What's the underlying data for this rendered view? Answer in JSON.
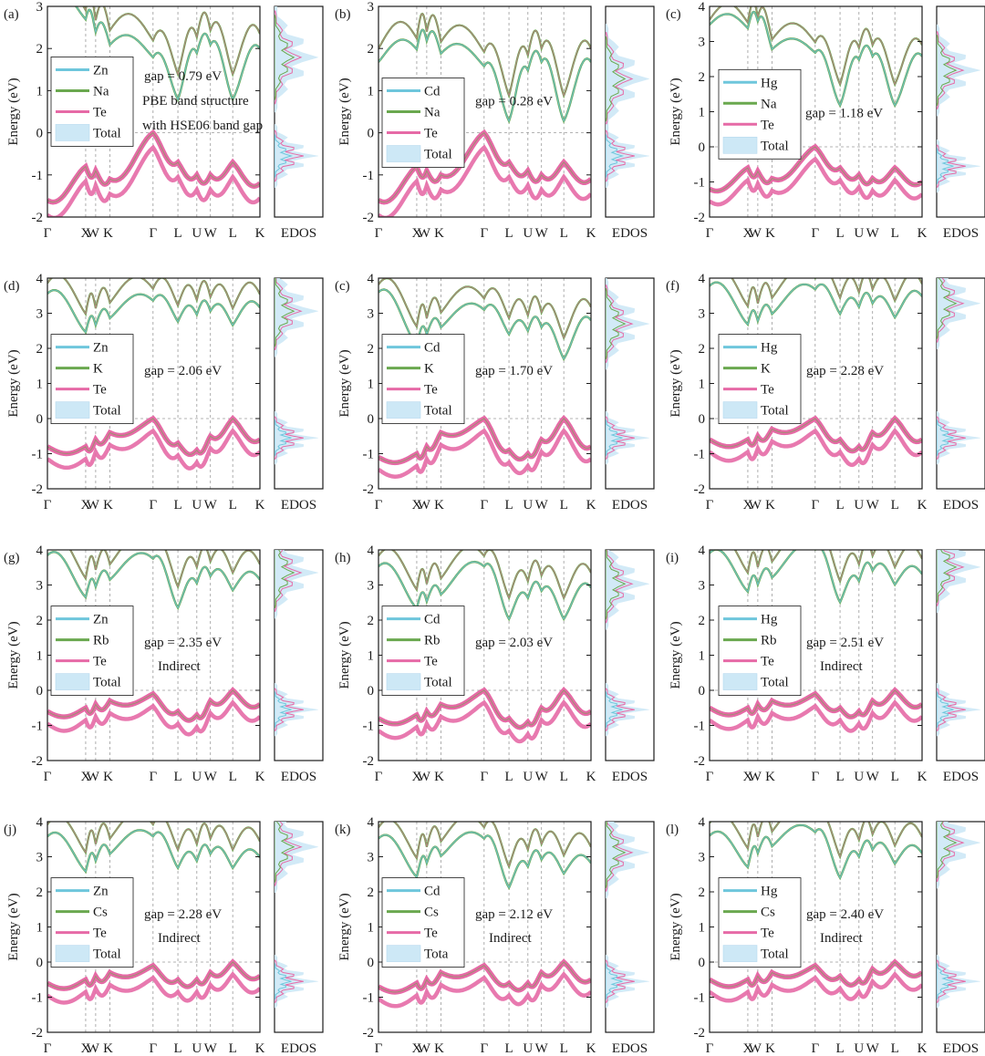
{
  "figure": {
    "ylabel": "Energy (eV)",
    "edos_label": "EDOS",
    "kpath": [
      "Γ",
      "X",
      "W",
      "K",
      "Γ",
      "L",
      "U",
      "W",
      "L",
      "K"
    ],
    "colors": {
      "metal": "#6ec6dc",
      "alkali": "#6aa84f",
      "te": "#e66aa6",
      "total": "#cde8f6",
      "frame": "#1a1a1a",
      "dash": "#9a9a9a"
    }
  },
  "chart_data": [
    {
      "panel": "(a)",
      "type": "line",
      "ylim": [
        -2,
        3
      ],
      "yticks": [
        3,
        2,
        1,
        0,
        -1,
        -2
      ],
      "legend": [
        "Zn",
        "Na",
        "Te",
        "Total"
      ],
      "notes": [
        "gap = 0.79 eV",
        "PBE band structure",
        "with HSE06 band gap"
      ],
      "cbm": 0.79,
      "cb_depth": [
        2.3,
        1.9,
        1.6,
        1.3,
        1.0,
        0.0,
        1.1,
        1.3,
        0.0,
        1.2
      ],
      "vb_depth": [
        1.6,
        0.8,
        0.9,
        1.1,
        0.0,
        0.7,
        1.0,
        1.0,
        0.7,
        1.2
      ]
    },
    {
      "panel": "(b)",
      "type": "line",
      "ylim": [
        -2,
        3
      ],
      "yticks": [
        3,
        2,
        1,
        0,
        -1,
        -2
      ],
      "legend": [
        "Cd",
        "Na",
        "Te",
        "Total"
      ],
      "notes": [
        "gap = 0.28 eV"
      ],
      "cbm": 0.28,
      "cb_depth": [
        1.4,
        1.7,
        1.9,
        1.6,
        1.3,
        0.0,
        1.2,
        1.4,
        0.0,
        1.4
      ],
      "vb_depth": [
        1.6,
        0.8,
        0.9,
        1.0,
        0.0,
        0.7,
        0.9,
        1.0,
        0.7,
        1.1
      ]
    },
    {
      "panel": "(c)",
      "type": "line",
      "ylim": [
        -2,
        4
      ],
      "yticks": [
        4,
        3,
        2,
        1,
        0,
        -1,
        -2
      ],
      "legend": [
        "Hg",
        "Na",
        "Te",
        "Total"
      ],
      "notes": [
        "gap = 1.18 eV"
      ],
      "cbm": 1.18,
      "cb_depth": [
        2.3,
        2.2,
        2.4,
        1.6,
        1.5,
        0.0,
        1.3,
        1.4,
        0.0,
        1.4
      ],
      "vb_depth": [
        1.2,
        0.6,
        0.7,
        0.9,
        0.0,
        0.6,
        0.8,
        0.9,
        0.6,
        1.0
      ]
    },
    {
      "panel": "(d)",
      "type": "line",
      "ylim": [
        -2,
        4
      ],
      "yticks": [
        4,
        3,
        2,
        1,
        0,
        -1,
        -2
      ],
      "legend": [
        "Zn",
        "K",
        "Te",
        "Total"
      ],
      "notes": [
        "gap = 2.06 eV"
      ],
      "cbm": 2.06,
      "cb_depth": [
        1.5,
        0.4,
        0.6,
        0.8,
        1.3,
        0.7,
        0.9,
        1.0,
        0.6,
        1.1
      ],
      "vb_depth": [
        0.8,
        0.8,
        0.6,
        0.4,
        0.0,
        0.7,
        0.9,
        0.5,
        0.0,
        0.6
      ]
    },
    {
      "panel": "(c)",
      "type": "line",
      "ylim": [
        -2,
        4
      ],
      "yticks": [
        4,
        3,
        2,
        1,
        0,
        -1,
        -2
      ],
      "legend": [
        "Cd",
        "K",
        "Te",
        "Total"
      ],
      "notes": [
        "gap = 1.70 eV"
      ],
      "cbm": 1.7,
      "cb_depth": [
        1.9,
        0.4,
        0.7,
        0.9,
        1.4,
        0.7,
        0.8,
        0.9,
        0.0,
        1.1
      ],
      "vb_depth": [
        1.1,
        1.0,
        0.8,
        0.4,
        0.0,
        0.9,
        1.0,
        0.6,
        0.0,
        0.8
      ]
    },
    {
      "panel": "(f)",
      "type": "line",
      "ylim": [
        -2,
        4
      ],
      "yticks": [
        4,
        3,
        2,
        1,
        0,
        -1,
        -2
      ],
      "legend": [
        "Hg",
        "K",
        "Te",
        "Total"
      ],
      "notes": [
        "gap = 2.28 eV"
      ],
      "cbm": 2.28,
      "cb_depth": [
        1.5,
        0.4,
        0.5,
        0.7,
        1.4,
        0.7,
        0.9,
        1.0,
        0.6,
        1.2
      ],
      "vb_depth": [
        0.6,
        0.6,
        0.5,
        0.3,
        0.0,
        0.6,
        0.8,
        0.4,
        0.0,
        0.6
      ]
    },
    {
      "panel": "(g)",
      "type": "line",
      "ylim": [
        -2,
        4
      ],
      "yticks": [
        4,
        3,
        2,
        1,
        0,
        -1,
        -2
      ],
      "legend": [
        "Zn",
        "Rb",
        "Te",
        "Total"
      ],
      "notes": [
        "gap = 2.35 eV",
        "Indirect"
      ],
      "cbm": 2.35,
      "cb_depth": [
        1.5,
        0.3,
        0.6,
        0.8,
        1.4,
        0.0,
        0.7,
        0.9,
        0.5,
        0.8
      ],
      "vb_depth": [
        0.6,
        0.5,
        0.4,
        0.3,
        0.1,
        0.6,
        0.7,
        0.3,
        0.0,
        0.4
      ]
    },
    {
      "panel": "(h)",
      "type": "line",
      "ylim": [
        -2,
        4
      ],
      "yticks": [
        4,
        3,
        2,
        1,
        0,
        -1,
        -2
      ],
      "legend": [
        "Cd",
        "Rb",
        "Te",
        "Total"
      ],
      "notes": [
        "gap = 2.03 eV"
      ],
      "cbm": 2.03,
      "cb_depth": [
        1.5,
        0.3,
        0.5,
        0.7,
        1.5,
        0.0,
        0.6,
        0.8,
        0.0,
        0.9
      ],
      "vb_depth": [
        0.8,
        0.7,
        0.6,
        0.4,
        0.0,
        0.8,
        0.9,
        0.5,
        0.0,
        0.6
      ]
    },
    {
      "panel": "(i)",
      "type": "line",
      "ylim": [
        -2,
        4
      ],
      "yticks": [
        4,
        3,
        2,
        1,
        0,
        -1,
        -2
      ],
      "legend": [
        "Hg",
        "Rb",
        "Te",
        "Total"
      ],
      "notes": [
        "gap = 2.51 eV",
        "Indirect"
      ],
      "cbm": 2.51,
      "cb_depth": [
        1.4,
        0.3,
        0.5,
        0.7,
        1.5,
        0.0,
        0.6,
        0.9,
        0.5,
        0.8
      ],
      "vb_depth": [
        0.5,
        0.5,
        0.4,
        0.3,
        0.1,
        0.5,
        0.6,
        0.3,
        0.0,
        0.4
      ]
    },
    {
      "panel": "(j)",
      "type": "line",
      "ylim": [
        -2,
        4
      ],
      "yticks": [
        4,
        3,
        2,
        1,
        0,
        -1,
        -2
      ],
      "legend": [
        "Zn",
        "Cs",
        "Te",
        "Total"
      ],
      "notes": [
        "gap = 2.28 eV",
        "Indirect"
      ],
      "cbm": 2.28,
      "cb_depth": [
        1.3,
        0.3,
        0.6,
        0.8,
        1.3,
        0.4,
        0.6,
        0.8,
        0.4,
        0.7
      ],
      "vb_depth": [
        0.6,
        0.5,
        0.4,
        0.3,
        0.1,
        0.5,
        0.5,
        0.3,
        0.0,
        0.4
      ]
    },
    {
      "panel": "(k)",
      "type": "line",
      "ylim": [
        -2,
        4
      ],
      "yticks": [
        4,
        3,
        2,
        1,
        0,
        -1,
        -2
      ],
      "legend": [
        "Cd",
        "Cs",
        "Te",
        "Tota"
      ],
      "notes": [
        "gap = 2.12 eV",
        "Indirect"
      ],
      "cbm": 2.12,
      "cb_depth": [
        1.4,
        0.3,
        0.7,
        0.9,
        1.4,
        0.0,
        0.6,
        0.8,
        0.4,
        0.7
      ],
      "vb_depth": [
        0.7,
        0.6,
        0.5,
        0.3,
        0.1,
        0.6,
        0.6,
        0.3,
        0.0,
        0.5
      ]
    },
    {
      "panel": "(l)",
      "type": "line",
      "ylim": [
        -2,
        4
      ],
      "yticks": [
        4,
        3,
        2,
        1,
        0,
        -1,
        -2
      ],
      "legend": [
        "Hg",
        "Cs",
        "Te",
        "Total"
      ],
      "notes": [
        "gap = 2.40 eV",
        "Indirect"
      ],
      "cbm": 2.4,
      "cb_depth": [
        1.2,
        0.3,
        0.7,
        0.9,
        1.3,
        0.0,
        0.6,
        0.8,
        0.4,
        0.7
      ],
      "vb_depth": [
        0.5,
        0.5,
        0.4,
        0.3,
        0.1,
        0.4,
        0.5,
        0.2,
        0.0,
        0.3
      ]
    }
  ]
}
